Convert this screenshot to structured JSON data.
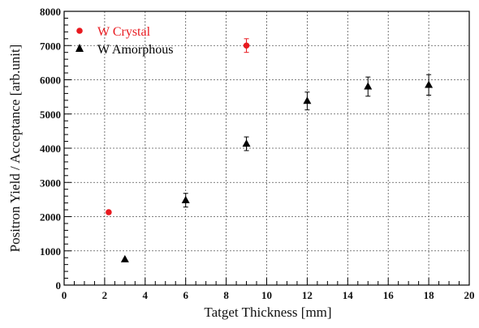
{
  "chart_data": {
    "type": "scatter",
    "title": "",
    "xlabel": "Tatget Thickness [mm]",
    "ylabel": "Positron Yield / Acceptance [arb.unit]",
    "xlim": [
      0,
      20
    ],
    "ylim": [
      0,
      8000
    ],
    "x_major_ticks": [
      0,
      2,
      4,
      6,
      8,
      10,
      12,
      14,
      16,
      18,
      20
    ],
    "y_major_ticks": [
      0,
      1000,
      2000,
      3000,
      4000,
      5000,
      6000,
      7000,
      8000
    ],
    "x_tick_labels": [
      "0",
      "2",
      "4",
      "6",
      "8",
      "10",
      "12",
      "14",
      "16",
      "18",
      "20"
    ],
    "y_tick_labels": [
      "0",
      "1000",
      "2000",
      "3000",
      "4000",
      "5000",
      "6000",
      "7000",
      "8000"
    ],
    "grid": true,
    "legend_position": "top-left",
    "series": [
      {
        "name": "W Crystal",
        "marker": "circle",
        "color": "#e8191f",
        "points": [
          {
            "x": 2.2,
            "y": 2130,
            "err": 0
          },
          {
            "x": 9.0,
            "y": 7000,
            "err": 200
          }
        ]
      },
      {
        "name": "W Amorphous",
        "marker": "triangle",
        "color": "#000000",
        "points": [
          {
            "x": 3.0,
            "y": 750,
            "err": 0
          },
          {
            "x": 6.0,
            "y": 2480,
            "err": 200
          },
          {
            "x": 9.0,
            "y": 4130,
            "err": 200
          },
          {
            "x": 12.0,
            "y": 5380,
            "err": 260
          },
          {
            "x": 15.0,
            "y": 5800,
            "err": 280
          },
          {
            "x": 18.0,
            "y": 5850,
            "err": 300
          }
        ]
      }
    ]
  }
}
